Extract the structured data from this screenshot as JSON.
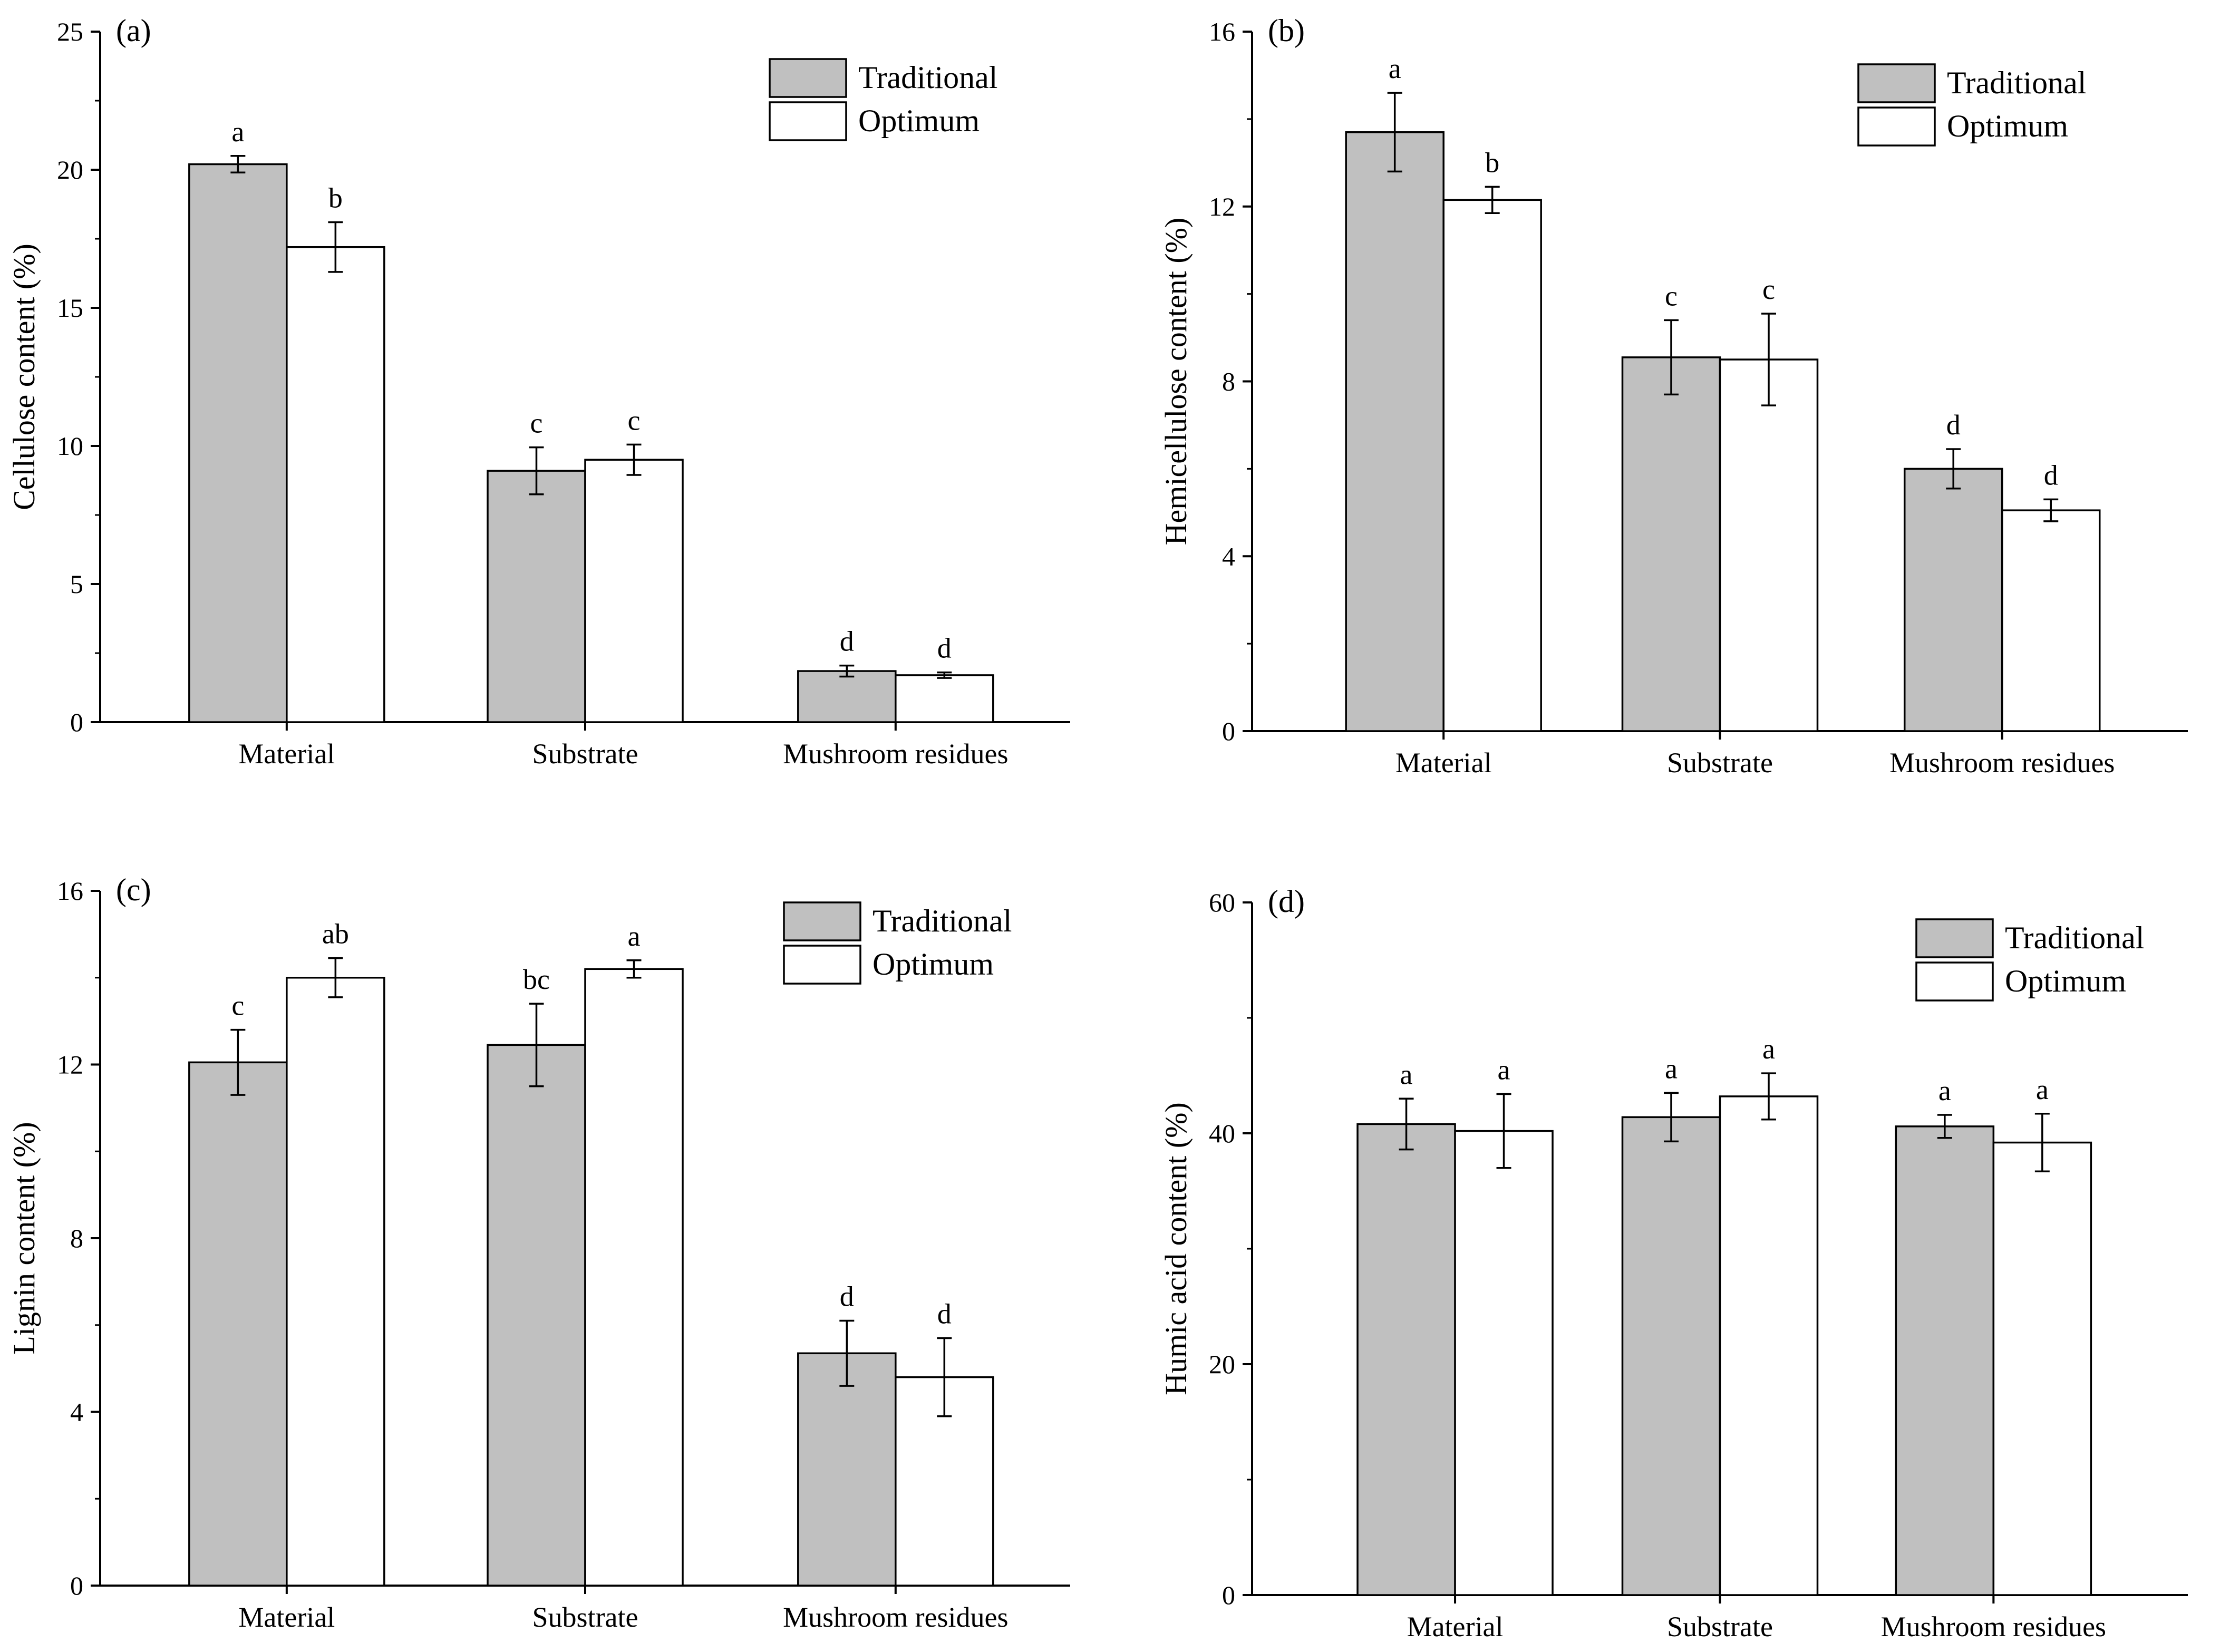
{
  "colors": {
    "traditional_fill": "#c0c0c0",
    "optimum_fill": "#ffffff",
    "stroke": "#000000"
  },
  "chart_data": [
    {
      "type": "bar",
      "panel": "(a)",
      "ylabel": "Cellulose content (%)",
      "ylim": [
        0,
        25
      ],
      "yticks": [
        0,
        5,
        10,
        15,
        20,
        25
      ],
      "categories": [
        "Material",
        "Substrate",
        "Mushroom residues"
      ],
      "legend": {
        "position": "top-right",
        "entries": [
          "Traditional",
          "Optimum"
        ]
      },
      "series": [
        {
          "name": "Traditional",
          "values": [
            20.2,
            9.1,
            1.85
          ],
          "errors": [
            0.3,
            0.85,
            0.2
          ],
          "letters": [
            "a",
            "c",
            "d"
          ]
        },
        {
          "name": "Optimum",
          "values": [
            17.2,
            9.5,
            1.7
          ],
          "errors": [
            0.9,
            0.55,
            0.1
          ],
          "letters": [
            "b",
            "c",
            "d"
          ]
        }
      ]
    },
    {
      "type": "bar",
      "panel": "(b)",
      "ylabel": "Hemicellulose content (%)",
      "ylim": [
        0,
        16
      ],
      "yticks": [
        0,
        4,
        8,
        12,
        16
      ],
      "categories": [
        "Material",
        "Substrate",
        "Mushroom residues"
      ],
      "legend": {
        "position": "top-right",
        "entries": [
          "Traditional",
          "Optimum"
        ]
      },
      "series": [
        {
          "name": "Traditional",
          "values": [
            13.7,
            8.55,
            6.0
          ],
          "errors": [
            0.9,
            0.85,
            0.45
          ],
          "letters": [
            "a",
            "c",
            "d"
          ]
        },
        {
          "name": "Optimum",
          "values": [
            12.15,
            8.5,
            5.05
          ],
          "errors": [
            0.3,
            1.05,
            0.25
          ],
          "letters": [
            "b",
            "c",
            "d"
          ]
        }
      ]
    },
    {
      "type": "bar",
      "panel": "(c)",
      "ylabel": "Lignin content (%)",
      "ylim": [
        0,
        16
      ],
      "yticks": [
        0,
        4,
        8,
        12,
        16
      ],
      "categories": [
        "Material",
        "Substrate",
        "Mushroom residues"
      ],
      "legend": {
        "position": "top-right",
        "entries": [
          "Traditional",
          "Optimum"
        ]
      },
      "series": [
        {
          "name": "Traditional",
          "values": [
            12.05,
            12.45,
            5.35
          ],
          "errors": [
            0.75,
            0.95,
            0.75
          ],
          "letters": [
            "c",
            "bc",
            "d"
          ]
        },
        {
          "name": "Optimum",
          "values": [
            14.0,
            14.2,
            4.8
          ],
          "errors": [
            0.45,
            0.2,
            0.9
          ],
          "letters": [
            "ab",
            "a",
            "d"
          ]
        }
      ]
    },
    {
      "type": "bar",
      "panel": "(d)",
      "ylabel": "Humic acid content (%)",
      "ylim": [
        0,
        60
      ],
      "yticks": [
        0,
        20,
        40,
        60
      ],
      "categories": [
        "Material",
        "Substrate",
        "Mushroom residues"
      ],
      "legend": {
        "position": "top-right",
        "entries": [
          "Traditional",
          "Optimum"
        ]
      },
      "series": [
        {
          "name": "Traditional",
          "values": [
            40.8,
            41.4,
            40.6
          ],
          "errors": [
            2.2,
            2.1,
            1.0
          ],
          "letters": [
            "a",
            "a",
            "a"
          ]
        },
        {
          "name": "Optimum",
          "values": [
            40.2,
            43.2,
            39.2
          ],
          "errors": [
            3.2,
            2.0,
            2.5
          ],
          "letters": [
            "a",
            "a",
            "a"
          ]
        }
      ]
    }
  ]
}
